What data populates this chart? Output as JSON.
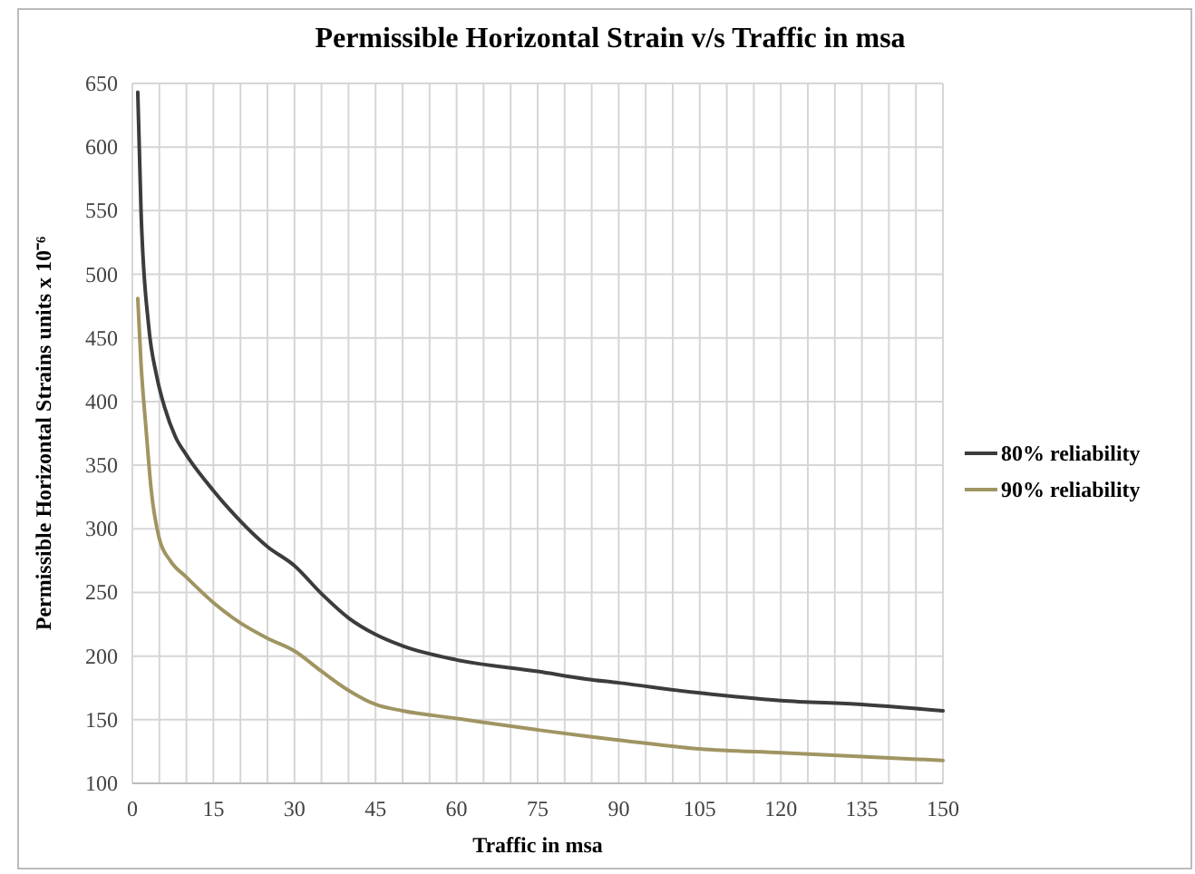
{
  "chart_data": {
    "type": "line",
    "title": "Permissible Horizontal Strain v/s Traffic in msa",
    "xlabel": "Traffic in msa",
    "ylabel": "Permissible Horizontal Strains units x 10⁻⁶",
    "xlim": [
      0,
      150
    ],
    "ylim": [
      100,
      650
    ],
    "xticks": [
      0,
      {
        "value": 5,
        "label": null
      },
      {
        "value": 10,
        "label": null
      },
      15,
      {
        "value": 20,
        "label": null
      },
      {
        "value": 25,
        "label": null
      },
      30,
      {
        "value": 35,
        "label": null
      },
      {
        "value": 40,
        "label": null
      },
      45,
      {
        "value": 50,
        "label": null
      },
      {
        "value": 55,
        "label": null
      },
      60,
      {
        "value": 65,
        "label": null
      },
      {
        "value": 70,
        "label": null
      },
      75,
      {
        "value": 80,
        "label": null
      },
      {
        "value": 85,
        "label": null
      },
      90,
      {
        "value": 95,
        "label": null
      },
      {
        "value": 100,
        "label": null
      },
      105,
      {
        "value": 110,
        "label": null
      },
      {
        "value": 115,
        "label": null
      },
      120,
      {
        "value": 125,
        "label": null
      },
      {
        "value": 130,
        "label": null
      },
      135,
      {
        "value": 140,
        "label": null
      },
      {
        "value": 145,
        "label": null
      },
      150
    ],
    "yticks": [
      100,
      150,
      200,
      250,
      300,
      350,
      400,
      450,
      500,
      550,
      600,
      650
    ],
    "grid": true,
    "legend": "right",
    "marker": "none",
    "line_style": "solid",
    "series": [
      {
        "name": "80% reliability",
        "color": "#3c3c3c",
        "x": [
          1,
          1.6,
          3,
          4.5,
          6,
          8,
          10,
          15,
          20,
          25,
          30,
          35,
          40,
          45,
          50,
          60,
          75,
          84,
          90,
          105,
          120,
          135,
          150
        ],
        "values": [
          643,
          550,
          460,
          420,
          395,
          372,
          358,
          330,
          306,
          286,
          271,
          249,
          230,
          217,
          208,
          197,
          188,
          182,
          179,
          171,
          165,
          162,
          157
        ]
      },
      {
        "name": "90% reliability",
        "color": "#a09562",
        "x": [
          1,
          1.6,
          2.5,
          3.5,
          5,
          7,
          10,
          15,
          20,
          25,
          30,
          35,
          40,
          45,
          50,
          60,
          75,
          84,
          90,
          105,
          120,
          135,
          150
        ],
        "values": [
          481,
          430,
          380,
          330,
          292,
          275,
          262,
          242,
          226,
          214,
          204,
          188,
          173,
          162,
          157,
          151,
          142,
          137,
          134,
          127,
          124,
          121,
          118
        ]
      }
    ]
  }
}
